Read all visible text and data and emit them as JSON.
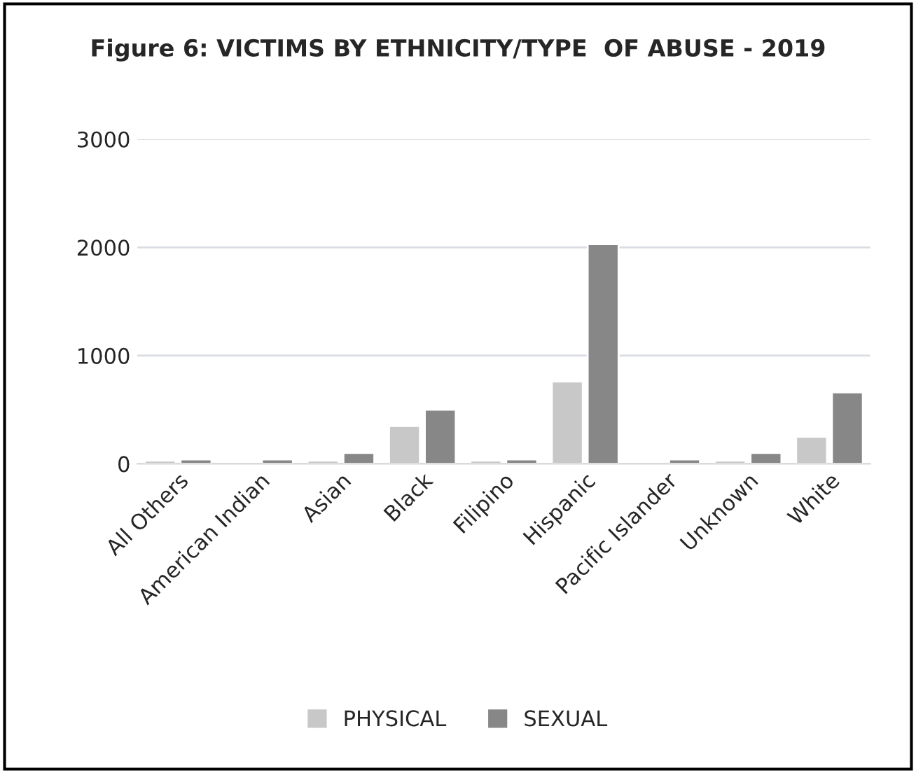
{
  "chart_data": {
    "type": "bar",
    "title": "Figure 6: VICTIMS BY ETHNICITY/TYPE  OF ABUSE - 2019",
    "categories": [
      "All Others",
      "American Indian",
      "Asian",
      "Black",
      "Filipino",
      "Hispanic",
      "Pacific Islander",
      "Unknown",
      "White"
    ],
    "series": [
      {
        "name": "PHYSICAL",
        "color": "#c8c8c8",
        "values": [
          30,
          null,
          30,
          350,
          30,
          760,
          null,
          30,
          250
        ]
      },
      {
        "name": "SEXUAL",
        "color": "#878787",
        "values": [
          40,
          40,
          100,
          500,
          40,
          2030,
          40,
          100,
          660
        ]
      }
    ],
    "ylim": [
      0,
      3000
    ],
    "yticks": [
      0,
      1000,
      2000,
      3000
    ],
    "grid": "y",
    "legend": "bottom"
  }
}
